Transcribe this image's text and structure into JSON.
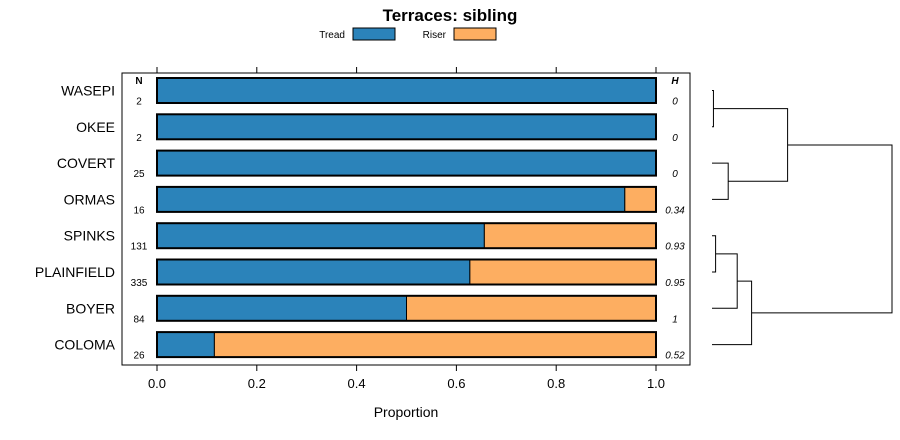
{
  "chart_data": {
    "type": "bar",
    "orientation": "horizontal",
    "stacked": true,
    "title": "Terraces: sibling",
    "xlabel": "Proportion",
    "ylabel": "",
    "xlim": [
      0,
      1
    ],
    "x_ticks": [
      {
        "value": 0,
        "label": "0.0"
      },
      {
        "value": 0.2,
        "label": "0.2"
      },
      {
        "value": 0.4,
        "label": "0.4"
      },
      {
        "value": 0.6,
        "label": "0.6"
      },
      {
        "value": 0.8,
        "label": "0.8"
      },
      {
        "value": 1,
        "label": "1.0"
      }
    ],
    "n_header": "N",
    "h_header": "H",
    "categories": [
      "WASEPI",
      "OKEE",
      "COVERT",
      "ORMAS",
      "SPINKS",
      "PLAINFIELD",
      "BOYER",
      "COLOMA"
    ],
    "n_values": [
      "2",
      "2",
      "25",
      "16",
      "131",
      "335",
      "84",
      "26"
    ],
    "h_values": [
      "0",
      "0",
      "0",
      "0.34",
      "0.93",
      "0.95",
      "1",
      "0.52"
    ],
    "series": [
      {
        "name": "Tread",
        "color": "#2b83ba",
        "values": [
          1.0,
          1.0,
          1.0,
          0.9375,
          0.656,
          0.627,
          0.5,
          0.115
        ]
      },
      {
        "name": "Riser",
        "color": "#fdae61",
        "values": [
          0.0,
          0.0,
          0.0,
          0.0625,
          0.344,
          0.373,
          0.5,
          0.885
        ]
      }
    ],
    "legend_position": "top-center",
    "dendrogram": {
      "leaf_order": [
        "WASEPI",
        "OKEE",
        "COVERT",
        "ORMAS",
        "SPINKS",
        "PLAINFIELD",
        "BOYER",
        "COLOMA"
      ],
      "merges": [
        {
          "a": "WASEPI",
          "b": "OKEE",
          "height": 0.008
        },
        {
          "a": "SPINKS",
          "b": "PLAINFIELD",
          "height": 0.02
        },
        {
          "a": "COVERT",
          "b": "ORMAS",
          "height": 0.09
        },
        {
          "a": [
            "WASEPI",
            "OKEE"
          ],
          "b": [
            "COVERT",
            "ORMAS"
          ],
          "height": 0.42
        },
        {
          "a": [
            "SPINKS",
            "PLAINFIELD"
          ],
          "b": "BOYER",
          "height": 0.14
        },
        {
          "a": [
            "SPINKS",
            "PLAINFIELD",
            "BOYER"
          ],
          "b": "COLOMA",
          "height": 0.22
        },
        {
          "a": [
            "WASEPI",
            "OKEE",
            "COVERT",
            "ORMAS"
          ],
          "b": [
            "SPINKS",
            "PLAINFIELD",
            "BOYER",
            "COLOMA"
          ],
          "height": 1.0
        }
      ]
    }
  }
}
